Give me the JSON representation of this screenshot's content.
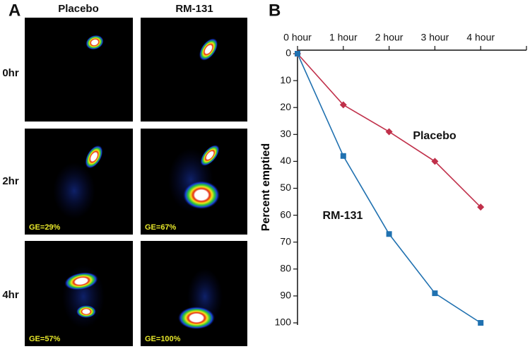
{
  "panel_a": {
    "label": "A",
    "columns": [
      "Placebo",
      "RM-131"
    ],
    "rows": [
      "0hr",
      "2hr",
      "4hr"
    ],
    "gastric_emptying": [
      "GE=29%",
      "GE=67%",
      "GE=57%",
      "GE=100%"
    ]
  },
  "chart_data": {
    "type": "line",
    "panel_label": "B",
    "ylabel": "Percent emptied",
    "categories": [
      "0 hour",
      "1 hour",
      "2 hour",
      "3 hour",
      "4 hour",
      null
    ],
    "series": [
      {
        "name": "Placebo",
        "color": "#c0304a",
        "marker": "diamond",
        "values": [
          0,
          19,
          29,
          40,
          57,
          null
        ]
      },
      {
        "name": "RM-131",
        "color": "#2071b0",
        "marker": "square",
        "values": [
          0,
          38,
          67,
          89,
          100,
          null
        ]
      }
    ],
    "ylim": [
      0,
      100
    ],
    "y_inverted": true,
    "yticks": [
      0,
      10,
      20,
      30,
      40,
      50,
      60,
      70,
      80,
      90,
      100
    ],
    "xaxis_position": "top",
    "grid": false
  }
}
